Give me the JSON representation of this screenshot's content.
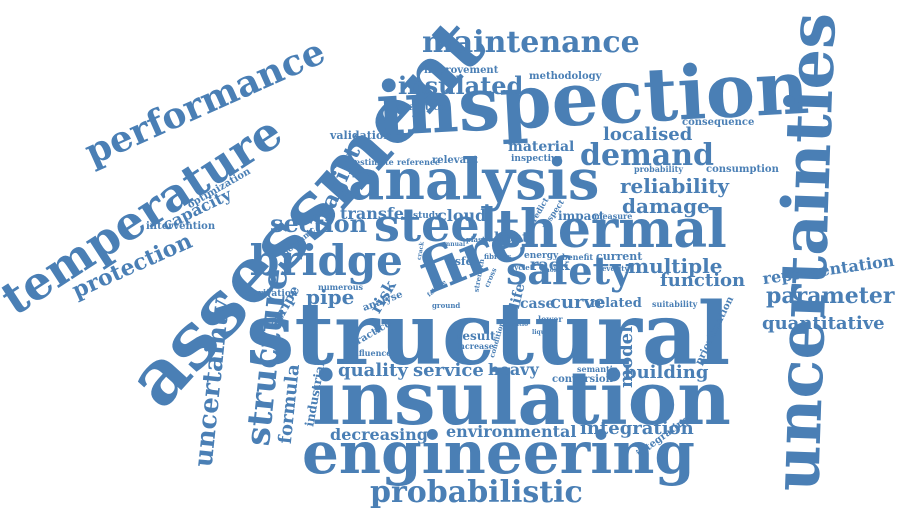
{
  "color": "#4a7fb5",
  "words": [
    "structural",
    "assessment",
    "inspection",
    "uncertainties",
    "insulation",
    "engineering",
    "analysis",
    "thermal",
    "temperature",
    "fire",
    "performance",
    "maintenance",
    "probabilistic",
    "steel",
    "bridge",
    "safety",
    "demand",
    "structure",
    "uncertainty",
    "insulated",
    "section",
    "damage",
    "reliability",
    "parameter",
    "quantitative",
    "fragility",
    "protection",
    "representation",
    "multiple",
    "localised",
    "capacity",
    "pipe",
    "function",
    "building",
    "model",
    "formula",
    "rack",
    "service",
    "quality",
    "heavy",
    "integration",
    "environmental",
    "decreasing",
    "transfer",
    "cloud",
    "heat",
    "stripe",
    "material",
    "consumption",
    "methodology",
    "improvement",
    "analytical",
    "validation",
    "consequence",
    "curve",
    "case",
    "related",
    "current",
    "benefit",
    "integrating",
    "prioritization",
    "conversion",
    "semantic",
    "industrial",
    "intervention",
    "optimization",
    "risk",
    "life",
    "result",
    "increase",
    "impact",
    "measure",
    "analyse",
    "numerous",
    "derivation",
    "practice",
    "influence",
    "inspective",
    "probability",
    "reference",
    "relevant",
    "estimate",
    "inorganic",
    "study",
    "suitability",
    "energy",
    "severity",
    "lower",
    "cycle",
    "psfe",
    "ground",
    "predict",
    "plastic",
    "respect",
    "condition",
    "fibrous",
    "strength",
    "cross",
    "smoke",
    "annual",
    "liquid",
    "crack",
    "ratio",
    "failure"
  ]
}
